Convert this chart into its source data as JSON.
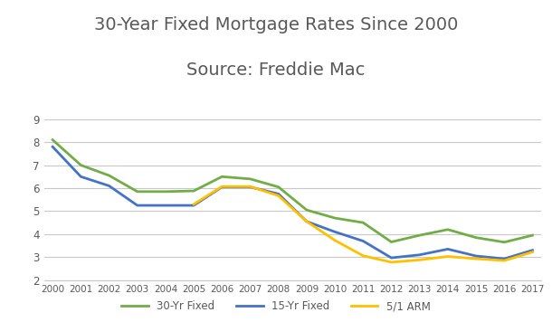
{
  "title_line1": "30-Year Fixed Mortgage Rates Since 2000",
  "title_line2": "Source: Freddie Mac",
  "years": [
    2000,
    2001,
    2002,
    2003,
    2004,
    2005,
    2006,
    2007,
    2008,
    2009,
    2010,
    2011,
    2012,
    2013,
    2014,
    2015,
    2016,
    2017
  ],
  "fixed30": [
    8.1,
    7.0,
    6.55,
    5.85,
    5.85,
    5.88,
    6.5,
    6.4,
    6.05,
    5.05,
    4.7,
    4.5,
    3.66,
    3.95,
    4.2,
    3.85,
    3.65,
    3.95
  ],
  "fixed15": [
    7.8,
    6.5,
    6.1,
    5.25,
    5.25,
    5.25,
    6.05,
    6.05,
    5.75,
    4.55,
    4.1,
    3.7,
    2.97,
    3.1,
    3.35,
    3.05,
    2.93,
    3.3
  ],
  "arm51": [
    null,
    null,
    null,
    null,
    null,
    5.3,
    6.07,
    6.07,
    5.67,
    4.55,
    3.73,
    3.06,
    2.78,
    2.88,
    3.03,
    2.93,
    2.85,
    3.22
  ],
  "line_colors": {
    "fixed30": "#70ad47",
    "fixed15": "#4472c4",
    "arm51": "#ffc000"
  },
  "legend_labels": {
    "fixed30": "30-Yr Fixed",
    "fixed15": "15-Yr Fixed",
    "arm51": "5/1 ARM"
  },
  "ylim": [
    2,
    9
  ],
  "yticks": [
    2,
    3,
    4,
    5,
    6,
    7,
    8,
    9
  ],
  "background_color": "#ffffff",
  "grid_color": "#c8c8c8",
  "title_fontsize": 14,
  "title_color": "#595959",
  "tick_color": "#595959",
  "line_width": 2.0
}
